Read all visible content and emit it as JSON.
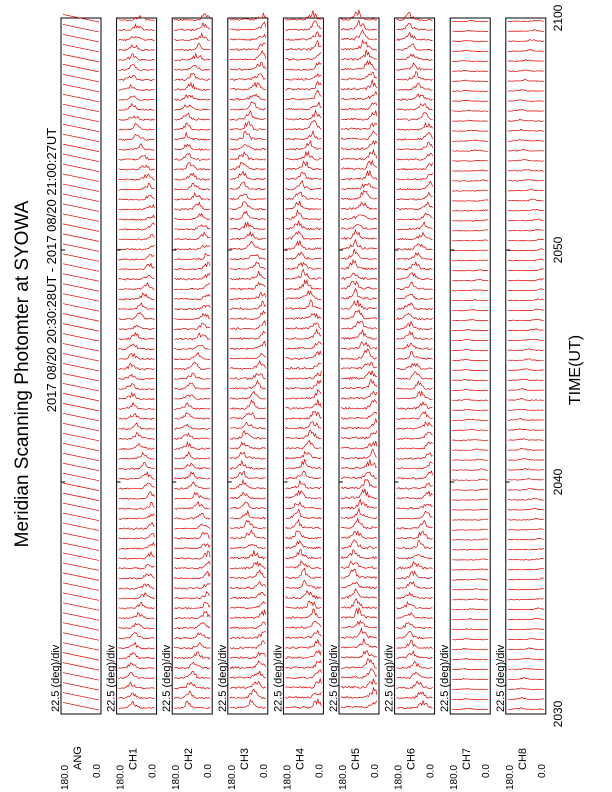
{
  "chart_data": {
    "type": "line",
    "title": "Meridian Scanning Photomter at SYOWA",
    "subtitle": "2017 08/20 20:30:28UT - 2017 08/20 21:00:27UT",
    "xlabel": "TIME(UT)",
    "x_ticks": [
      "2030",
      "2040",
      "2050",
      "2100"
    ],
    "x_range": [
      "20:30",
      "21:00"
    ],
    "scale_label": "22.5 (deg)/div",
    "y_tick_top": "180.0",
    "y_tick_bottom": "0.0",
    "line_color": "#e00000",
    "panels": [
      {
        "label": "ANG",
        "kind": "angle"
      },
      {
        "label": "CH1",
        "kind": "auroral",
        "activity": 0.55
      },
      {
        "label": "CH2",
        "kind": "auroral",
        "activity": 0.6
      },
      {
        "label": "CH3",
        "kind": "auroral",
        "activity": 0.7
      },
      {
        "label": "CH4",
        "kind": "auroral",
        "activity": 0.75
      },
      {
        "label": "CH5",
        "kind": "auroral",
        "activity": 0.8
      },
      {
        "label": "CH6",
        "kind": "auroral",
        "activity": 0.65
      },
      {
        "label": "CH7",
        "kind": "quiet",
        "activity": 0.1
      },
      {
        "label": "CH8",
        "kind": "quiet",
        "activity": 0.15
      }
    ]
  }
}
